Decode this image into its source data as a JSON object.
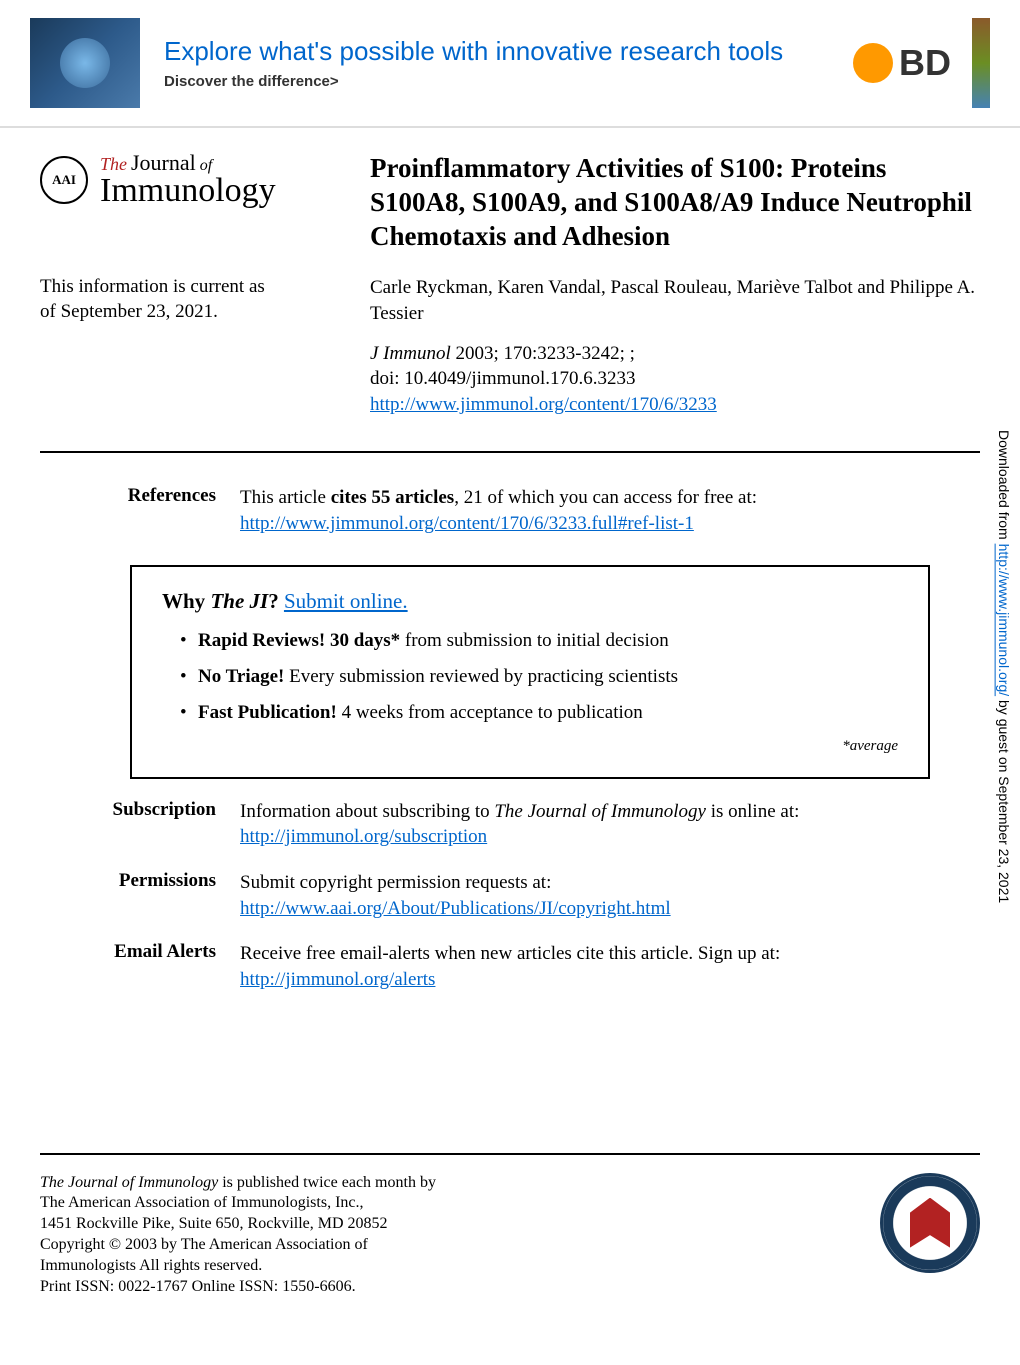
{
  "banner": {
    "title": "Explore what's possible with innovative research tools",
    "subtitle": "Discover the difference>",
    "bd_text": "BD"
  },
  "journal": {
    "the": "The",
    "journal": "Journal",
    "of": "of",
    "immunology": "Immunology",
    "aai_mark": "AAI"
  },
  "article": {
    "title": "Proinflammatory Activities of S100: Proteins S100A8, S100A9, and S100A8/A9 Induce Neutrophil Chemotaxis and Adhesion"
  },
  "currency": {
    "line1": "This information is current as",
    "line2": "of September 23, 2021."
  },
  "authors": "Carle Ryckman, Karen Vandal, Pascal Rouleau, Mariève Talbot and Philippe A. Tessier",
  "citation": {
    "journal": "J Immunol",
    "year_pages": " 2003; 170:3233-3242; ;",
    "doi": "doi: 10.4049/jimmunol.170.6.3233",
    "url": "http://www.jimmunol.org/content/170/6/3233"
  },
  "references": {
    "label": "References",
    "text_prefix": "This article ",
    "text_bold": "cites 55 articles",
    "text_suffix": ", 21 of which you can access for free at:",
    "url": "http://www.jimmunol.org/content/170/6/3233.full#ref-list-1"
  },
  "why_box": {
    "title_prefix": "Why ",
    "title_em": "The JI",
    "title_suffix": "? ",
    "title_link": "Submit online.",
    "bullets": [
      {
        "bold": "Rapid Reviews! 30 days*",
        "rest": " from submission to initial decision"
      },
      {
        "bold": "No Triage!",
        "rest": " Every submission reviewed by practicing scientists"
      },
      {
        "bold": "Fast Publication!",
        "rest": " 4 weeks from acceptance to publication"
      }
    ],
    "footnote": "*average"
  },
  "subscription": {
    "label": "Subscription",
    "text_prefix": "Information about subscribing to ",
    "text_em": "The Journal of Immunology",
    "text_suffix": " is online at:",
    "url": "http://jimmunol.org/subscription"
  },
  "permissions": {
    "label": "Permissions",
    "text": "Submit copyright permission requests at:",
    "url": "http://www.aai.org/About/Publications/JI/copyright.html"
  },
  "email_alerts": {
    "label": "Email Alerts",
    "text": "Receive free email-alerts when new articles cite this article. Sign up at:",
    "url": "http://jimmunol.org/alerts"
  },
  "footer": {
    "line1_em": "The Journal of Immunology",
    "line1_rest": " is published twice each month by",
    "line2": "The American Association of Immunologists, Inc.,",
    "line3": "1451 Rockville Pike, Suite 650, Rockville, MD 20852",
    "line4": "Copyright © 2003 by The American Association of",
    "line5": "Immunologists All rights reserved.",
    "line6": "Print ISSN: 0022-1767 Online ISSN: 1550-6606."
  },
  "sidebar": {
    "prefix": "Downloaded from ",
    "url": "http://www.jimmunol.org/",
    "suffix": " by guest on September 23, 2021"
  },
  "colors": {
    "link": "#0066cc",
    "accent_red": "#b22222",
    "bd_orange": "#ff9900",
    "seal_navy": "#1a3a5a"
  }
}
